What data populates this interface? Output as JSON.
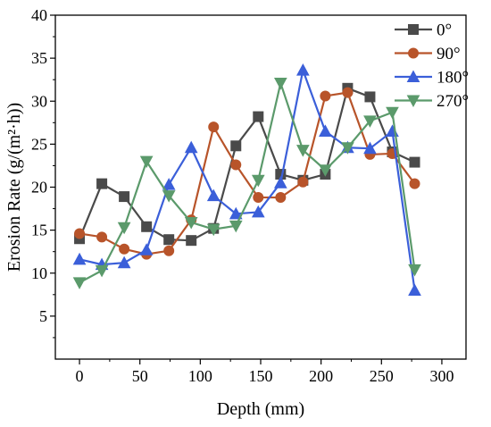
{
  "chart_data": {
    "type": "line",
    "title": "",
    "xlabel": "Depth (mm)",
    "ylabel": "Erosion Rate (g/(m²·h))",
    "xlim": [
      -20,
      320
    ],
    "ylim": [
      0,
      40
    ],
    "xticks": [
      "0",
      "50",
      "100",
      "150",
      "200",
      "250",
      "300"
    ],
    "yticks": [
      "5",
      "10",
      "15",
      "20",
      "25",
      "30",
      "35",
      "40"
    ],
    "grid": false,
    "legend_position": "top-right",
    "x": [
      0,
      18.5,
      37,
      55.5,
      74,
      92.5,
      111,
      129.5,
      148,
      166.5,
      185,
      203.5,
      222,
      240.5,
      259,
      277.5
    ],
    "series": [
      {
        "name": "0°",
        "color": "#4a4a4a",
        "marker": "square",
        "values": [
          14.0,
          20.4,
          18.9,
          15.4,
          13.9,
          13.8,
          15.2,
          24.8,
          28.2,
          21.5,
          20.8,
          21.5,
          31.5,
          30.5,
          24.1,
          22.9
        ]
      },
      {
        "name": "90°",
        "color": "#b8542a",
        "marker": "circle",
        "values": [
          14.6,
          14.2,
          12.8,
          12.2,
          12.6,
          16.2,
          27.0,
          22.6,
          18.8,
          18.8,
          20.6,
          30.6,
          31.0,
          23.8,
          23.9,
          20.4
        ]
      },
      {
        "name": "180°",
        "color": "#3b5fd9",
        "marker": "triangle-up",
        "values": [
          11.6,
          11.0,
          11.2,
          12.7,
          20.3,
          24.6,
          19.0,
          16.9,
          17.1,
          20.5,
          33.6,
          26.5,
          24.6,
          24.5,
          26.5,
          8.0
        ]
      },
      {
        "name": "270°",
        "color": "#5b9a6b",
        "marker": "triangle-down",
        "values": [
          8.9,
          10.3,
          15.3,
          23.0,
          19.0,
          15.9,
          15.1,
          15.5,
          20.8,
          32.1,
          24.3,
          22.0,
          24.6,
          27.7,
          28.7,
          10.4
        ]
      }
    ]
  }
}
